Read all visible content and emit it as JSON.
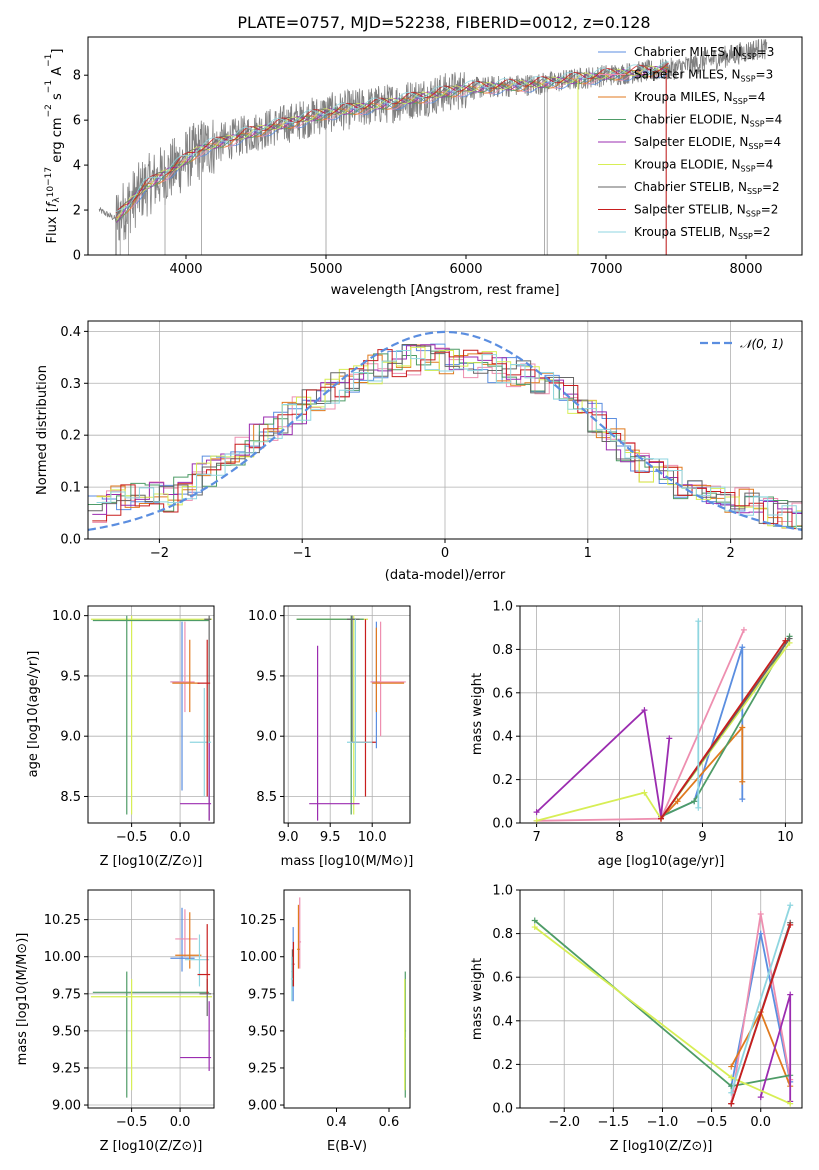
{
  "title": "PLATE=0757, MJD=52238, FIBERID=0012, z=0.128",
  "colors": {
    "Chabrier MILES": "#5b8ee0",
    "Salpeter MILES": "#ee8fb0",
    "Kroupa MILES": "#e07a1f",
    "Chabrier ELODIE": "#4e9c67",
    "Salpeter ELODIE": "#9b2cb0",
    "Kroupa ELODIE": "#d7ee55",
    "Chabrier STELIB": "#666666",
    "Salpeter STELIB": "#c81e1e",
    "Kroupa STELIB": "#8fd6e0",
    "normal": "#5b8ee0"
  },
  "chart_data": [
    {
      "type": "line",
      "xlabel": "wavelength [Angstrom, rest frame]",
      "ylabel": "Flux [f_λ 10^-17 erg cm^-2 s^-1 A^-1]",
      "ylabel_parts": {
        "a": "Flux [",
        "b": "f",
        "c": "λ",
        "d": "10",
        "e": "−17",
        "f": " erg cm",
        "g": "−2",
        "h": " s",
        "i": "−1",
        "j": " A",
        "k": "−1",
        "l": "]"
      },
      "xlim": [
        3300,
        8400
      ],
      "ylim": [
        0,
        9.7
      ],
      "xticks": [
        "4000",
        "5000",
        "6000",
        "7000",
        "8000"
      ],
      "yticks": [
        "0",
        "2",
        "4",
        "6",
        "8"
      ],
      "observed_spectrum": {
        "x": [
          3380,
          3500,
          3700,
          3900,
          4100,
          4500,
          5000,
          5500,
          6000,
          6500,
          7000,
          7500,
          8100
        ],
        "y": [
          2.0,
          1.6,
          3.0,
          3.8,
          4.7,
          5.5,
          6.3,
          6.8,
          7.4,
          7.6,
          8.0,
          8.3,
          9.2
        ]
      },
      "legend": [
        {
          "name": "Chabrier MILES",
          "nssp": "3"
        },
        {
          "name": "Salpeter MILES",
          "nssp": "3"
        },
        {
          "name": "Kroupa MILES",
          "nssp": "4"
        },
        {
          "name": "Chabrier ELODIE",
          "nssp": "4"
        },
        {
          "name": "Salpeter ELODIE",
          "nssp": "4"
        },
        {
          "name": "Kroupa ELODIE",
          "nssp": "4"
        },
        {
          "name": "Chabrier STELIB",
          "nssp": "2"
        },
        {
          "name": "Salpeter STELIB",
          "nssp": "2"
        },
        {
          "name": "Kroupa STELIB",
          "nssp": "2"
        }
      ],
      "legend_placement": "top-right",
      "grid": false
    },
    {
      "type": "histogram",
      "xlabel": "(data-model)/error",
      "ylabel": "Normed distribution",
      "xlim": [
        -2.5,
        2.5
      ],
      "ylim": [
        0,
        0.42
      ],
      "xticks": [
        "−2",
        "−1",
        "0",
        "1",
        "2"
      ],
      "yticks": [
        "0.0",
        "0.1",
        "0.2",
        "0.3",
        "0.4"
      ],
      "legend": [
        {
          "name": "𝒩(0, 1)"
        }
      ],
      "legend_placement": "top-right",
      "grid": true,
      "envelope": {
        "x": [
          -2.5,
          -2.2,
          -1.9,
          -1.6,
          -1.3,
          -1.0,
          -0.7,
          -0.4,
          -0.1,
          0.2,
          0.5,
          0.8,
          1.1,
          1.4,
          1.7,
          2.0,
          2.3,
          2.5
        ],
        "y": [
          0.05,
          0.085,
          0.08,
          0.14,
          0.2,
          0.25,
          0.3,
          0.34,
          0.35,
          0.34,
          0.32,
          0.3,
          0.22,
          0.14,
          0.1,
          0.08,
          0.05,
          0.04
        ]
      }
    },
    {
      "type": "errorbar",
      "xlabel": "Z [log10(Z/Z⊙)]",
      "ylabel": "age  [log10(age/yr)]",
      "xlim": [
        -0.95,
        0.35
      ],
      "ylim": [
        8.28,
        10.08
      ],
      "xticks": [
        "−0.5",
        "0.0"
      ],
      "yticks": [
        "8.5",
        "9.0",
        "9.5",
        "10.0"
      ],
      "grid": true
    },
    {
      "type": "errorbar",
      "xlabel": "mass [log10(M/M⊙)]",
      "ylabel": "",
      "xlim": [
        8.95,
        10.45
      ],
      "ylim": [
        8.28,
        10.08
      ],
      "xticks": [
        "9.0",
        "9.5",
        "10.0"
      ],
      "yticks": [
        "8.5",
        "9.0",
        "9.5",
        "10.0"
      ],
      "grid": true
    },
    {
      "type": "line",
      "xlabel": "age  [log10(age/yr)]",
      "ylabel": "mass weight",
      "xlim": [
        6.8,
        10.2
      ],
      "ylim": [
        0,
        1.0
      ],
      "xticks": [
        "7",
        "8",
        "9",
        "10"
      ],
      "yticks": [
        "0.0",
        "0.2",
        "0.4",
        "0.6",
        "0.8",
        "1.0"
      ],
      "grid": true,
      "series": [
        {
          "name": "Chabrier MILES",
          "x": [
            8.5,
            8.9,
            9.48,
            9.48
          ],
          "y": [
            0.03,
            0.1,
            0.81,
            0.11
          ]
        },
        {
          "name": "Salpeter MILES",
          "x": [
            7.0,
            8.5,
            9.5
          ],
          "y": [
            0.01,
            0.02,
            0.89
          ]
        },
        {
          "name": "Kroupa MILES",
          "x": [
            8.5,
            8.7,
            9.48,
            9.48
          ],
          "y": [
            0.02,
            0.1,
            0.44,
            0.19
          ]
        },
        {
          "name": "Chabrier ELODIE",
          "x": [
            8.5,
            8.9,
            10.05
          ],
          "y": [
            0.03,
            0.1,
            0.86
          ]
        },
        {
          "name": "Salpeter ELODIE",
          "x": [
            7.0,
            8.3,
            8.5,
            8.6
          ],
          "y": [
            0.05,
            0.52,
            0.03,
            0.39
          ]
        },
        {
          "name": "Kroupa ELODIE",
          "x": [
            7.0,
            8.3,
            8.5,
            10.05
          ],
          "y": [
            0.01,
            0.14,
            0.02,
            0.83
          ]
        },
        {
          "name": "Chabrier STELIB",
          "x": [
            8.5,
            10.05
          ],
          "y": [
            0.02,
            0.85
          ]
        },
        {
          "name": "Salpeter STELIB",
          "x": [
            8.5,
            10.0
          ],
          "y": [
            0.02,
            0.84
          ]
        },
        {
          "name": "Kroupa STELIB",
          "x": [
            8.95,
            8.95
          ],
          "y": [
            0.93,
            0.07
          ]
        }
      ]
    },
    {
      "type": "errorbar",
      "xlabel": "Z [log10(Z/Z⊙)]",
      "ylabel": "mass [log10(M/M⊙)]",
      "xlim": [
        -0.95,
        0.35
      ],
      "ylim": [
        8.98,
        10.45
      ],
      "xticks": [
        "−0.5",
        "0.0"
      ],
      "yticks": [
        "9.00",
        "9.25",
        "9.50",
        "9.75",
        "10.00",
        "10.25"
      ],
      "grid": true
    },
    {
      "type": "errorbar",
      "xlabel": "E(B-V)",
      "ylabel": "",
      "xlim": [
        0.2,
        0.68
      ],
      "ylim": [
        8.98,
        10.45
      ],
      "xticks": [
        "0.4",
        "0.6"
      ],
      "yticks": [
        "9.00",
        "9.25",
        "9.50",
        "9.75",
        "10.00",
        "10.25"
      ],
      "grid": false
    },
    {
      "type": "line",
      "xlabel": "Z [log10(Z/Z⊙)]",
      "ylabel": "mass weight",
      "xlim": [
        -2.45,
        0.42
      ],
      "ylim": [
        0,
        1.0
      ],
      "xticks": [
        "−2.0",
        "−1.5",
        "−1.0",
        "−0.5",
        "0.0"
      ],
      "yticks": [
        "0.0",
        "0.2",
        "0.4",
        "0.6",
        "0.8",
        "1.0"
      ],
      "grid": true,
      "series": [
        {
          "name": "Chabrier MILES",
          "x": [
            -0.3,
            0.0,
            0.3
          ],
          "y": [
            0.1,
            0.8,
            0.12
          ]
        },
        {
          "name": "Salpeter MILES",
          "x": [
            -0.3,
            0.0,
            0.3
          ],
          "y": [
            0.02,
            0.89,
            0.13
          ]
        },
        {
          "name": "Kroupa MILES",
          "x": [
            -0.3,
            0.0,
            0.3
          ],
          "y": [
            0.19,
            0.44,
            0.1
          ]
        },
        {
          "name": "Chabrier ELODIE",
          "x": [
            -2.3,
            -0.3,
            0.3
          ],
          "y": [
            0.86,
            0.1,
            0.15
          ]
        },
        {
          "name": "Salpeter ELODIE",
          "x": [
            0.0,
            0.3,
            0.3
          ],
          "y": [
            0.05,
            0.52,
            0.03
          ]
        },
        {
          "name": "Kroupa ELODIE",
          "x": [
            -2.3,
            -0.3,
            0.3
          ],
          "y": [
            0.83,
            0.14,
            0.02
          ]
        },
        {
          "name": "Chabrier STELIB",
          "x": [
            -0.3,
            0.3
          ],
          "y": [
            0.02,
            0.85
          ]
        },
        {
          "name": "Salpeter STELIB",
          "x": [
            -0.3,
            0.3
          ],
          "y": [
            0.02,
            0.84
          ]
        },
        {
          "name": "Kroupa STELIB",
          "x": [
            -0.3,
            0.3
          ],
          "y": [
            0.07,
            0.93
          ]
        }
      ]
    }
  ]
}
